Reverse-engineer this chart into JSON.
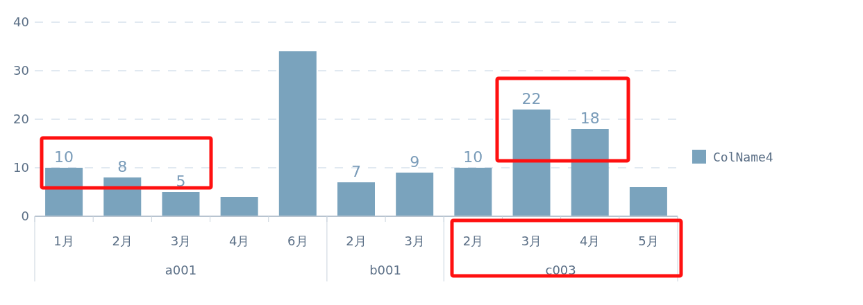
{
  "chart_data": {
    "type": "bar",
    "categories": [
      "1月",
      "2月",
      "3月",
      "4月",
      "6月",
      "2月",
      "3月",
      "2月",
      "3月",
      "4月",
      "5月"
    ],
    "series": [
      {
        "name": "ColName4",
        "color": "#7aa3bd",
        "values": [
          10,
          8,
          5,
          4,
          34,
          7,
          9,
          10,
          22,
          18,
          6
        ],
        "value_labels": [
          "10",
          "8",
          "5",
          null,
          null,
          "7",
          "9",
          "10",
          "22",
          "18",
          null
        ]
      }
    ],
    "ylim": [
      0,
      40
    ],
    "yticks": [
      0,
      10,
      20,
      30,
      40
    ],
    "grid": "y",
    "legend": "right",
    "annotations": [
      "a001",
      "b001",
      "c003"
    ]
  }
}
